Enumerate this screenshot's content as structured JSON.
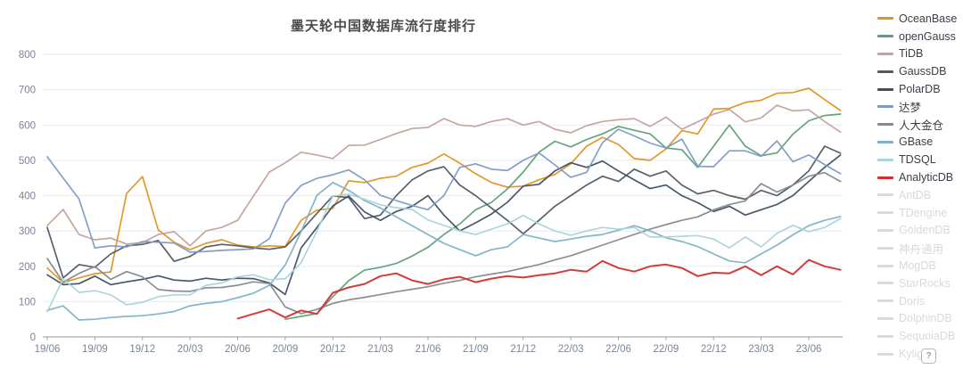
{
  "title": "墨天轮中国数据库流行度排行",
  "help_icon": {
    "glyph": "?"
  },
  "colors": {
    "grid": "#e4ebf2",
    "axis_line": "#a6abb2",
    "tick_text": "#7c8493",
    "disabled_legend": "#d8dadd"
  },
  "chart_data": {
    "type": "line",
    "title": "墨天轮中国数据库流行度排行",
    "xlabel": "",
    "ylabel": "",
    "ylim": [
      0,
      800
    ],
    "y_ticks": [
      0,
      100,
      200,
      300,
      400,
      500,
      600,
      700,
      800
    ],
    "grid": "horizontal",
    "legend_position": "right",
    "x_tick_labels": [
      "19/06",
      "19/09",
      "19/12",
      "20/03",
      "20/06",
      "20/09",
      "20/12",
      "21/03",
      "21/06",
      "21/09",
      "21/12",
      "22/03",
      "22/06",
      "22/09",
      "22/12",
      "23/03",
      "23/06"
    ],
    "x_tick_indices": [
      0,
      3,
      6,
      9,
      12,
      15,
      18,
      21,
      24,
      27,
      30,
      33,
      36,
      39,
      42,
      45,
      48
    ],
    "x_months": [
      "19/06",
      "19/07",
      "19/08",
      "19/09",
      "19/10",
      "19/11",
      "19/12",
      "20/01",
      "20/02",
      "20/03",
      "20/04",
      "20/05",
      "20/06",
      "20/07",
      "20/08",
      "20/09",
      "20/10",
      "20/11",
      "20/12",
      "21/01",
      "21/02",
      "21/03",
      "21/04",
      "21/05",
      "21/06",
      "21/07",
      "21/08",
      "21/09",
      "21/10",
      "21/11",
      "21/12",
      "22/01",
      "22/02",
      "22/03",
      "22/04",
      "22/05",
      "22/06",
      "22/07",
      "22/08",
      "22/09",
      "22/10",
      "22/11",
      "22/12",
      "23/01",
      "23/02",
      "23/03",
      "23/04",
      "23/05",
      "23/06",
      "23/07",
      "23/08"
    ],
    "series": [
      {
        "name": "OceanBase",
        "color": "#e09420",
        "width": 1.7,
        "values": [
          195,
          154,
          167,
          179,
          184,
          406,
          454,
          303,
          268,
          247,
          265,
          275,
          260,
          255,
          258,
          256,
          330,
          359,
          364,
          442,
          437,
          449,
          455,
          480,
          492,
          518,
          492,
          462,
          437,
          424,
          427,
          445,
          460,
          490,
          540,
          565,
          545,
          505,
          500,
          532,
          584,
          575,
          645,
          647,
          664,
          670,
          690,
          692,
          704,
          672,
          641
        ]
      },
      {
        "name": "openGauss",
        "color": "#5e9e77",
        "width": 1.7,
        "values": [
          null,
          null,
          null,
          null,
          null,
          null,
          null,
          null,
          null,
          null,
          null,
          null,
          null,
          null,
          null,
          50,
          58,
          66,
          114,
          159,
          189,
          197,
          208,
          229,
          254,
          290,
          320,
          360,
          381,
          419,
          467,
          523,
          554,
          538,
          559,
          575,
          596,
          585,
          575,
          535,
          530,
          480,
          540,
          600,
          540,
          513,
          521,
          574,
          612,
          627,
          631
        ]
      },
      {
        "name": "TiDB",
        "color": "#c4a19a",
        "width": 1.7,
        "values": [
          315,
          361,
          290,
          275,
          280,
          263,
          267,
          290,
          298,
          258,
          300,
          310,
          330,
          399,
          467,
          493,
          523,
          515,
          505,
          542,
          543,
          559,
          576,
          590,
          593,
          618,
          600,
          596,
          610,
          618,
          600,
          610,
          588,
          578,
          598,
          610,
          615,
          618,
          596,
          622,
          588,
          609,
          631,
          644,
          609,
          620,
          656,
          640,
          643,
          610,
          580
        ]
      },
      {
        "name": "GaussDB",
        "color": "#4f5a64",
        "width": 1.7,
        "values": [
          310,
          167,
          205,
          197,
          235,
          258,
          262,
          273,
          214,
          228,
          255,
          262,
          258,
          252,
          248,
          255,
          300,
          350,
          399,
          395,
          335,
          345,
          400,
          445,
          470,
          482,
          430,
          400,
          365,
          330,
          292,
          330,
          370,
          400,
          430,
          455,
          440,
          475,
          455,
          470,
          430,
          405,
          415,
          400,
          390,
          415,
          400,
          430,
          470,
          540,
          520
        ]
      },
      {
        "name": "PolarDB",
        "color": "#3e4f63",
        "width": 1.7,
        "values": [
          176,
          148,
          151,
          172,
          148,
          156,
          163,
          173,
          161,
          158,
          166,
          161,
          166,
          165,
          153,
          120,
          252,
          310,
          371,
          399,
          354,
          330,
          355,
          370,
          400,
          345,
          300,
          323,
          348,
          381,
          427,
          432,
          470,
          493,
          480,
          498,
          470,
          445,
          420,
          430,
          400,
          380,
          355,
          370,
          345,
          360,
          375,
          400,
          440,
          480,
          515
        ]
      },
      {
        "name": "达梦",
        "color": "#7d9ac4",
        "width": 1.7,
        "values": [
          510,
          450,
          391,
          252,
          258,
          255,
          270,
          268,
          266,
          240,
          242,
          245,
          247,
          249,
          278,
          379,
          429,
          449,
          459,
          473,
          445,
          401,
          386,
          372,
          360,
          400,
          480,
          490,
          475,
          471,
          500,
          521,
          487,
          452,
          466,
          550,
          588,
          569,
          549,
          535,
          560,
          483,
          482,
          527,
          527,
          511,
          555,
          496,
          515,
          488,
          462
        ]
      },
      {
        "name": "人大金仓",
        "color": "#85888c",
        "width": 1.7,
        "values": [
          222,
          155,
          180,
          199,
          163,
          185,
          170,
          134,
          130,
          129,
          139,
          140,
          146,
          156,
          151,
          85,
          66,
          78,
          95,
          105,
          112,
          120,
          128,
          135,
          142,
          152,
          160,
          170,
          178,
          185,
          195,
          205,
          218,
          230,
          245,
          260,
          275,
          290,
          305,
          318,
          330,
          340,
          360,
          375,
          385,
          434,
          410,
          430,
          455,
          465,
          440
        ]
      },
      {
        "name": "GBase",
        "color": "#7eb1c6",
        "width": 1.7,
        "values": [
          75,
          88,
          48,
          50,
          55,
          58,
          60,
          65,
          72,
          88,
          95,
          100,
          111,
          124,
          146,
          204,
          298,
          401,
          437,
          415,
          386,
          365,
          340,
          315,
          290,
          265,
          247,
          230,
          247,
          255,
          290,
          280,
          270,
          277,
          285,
          290,
          302,
          315,
          300,
          281,
          270,
          256,
          235,
          215,
          210,
          235,
          260,
          289,
          315,
          330,
          341
        ]
      },
      {
        "name": "TDSQL",
        "color": "#a9d4da",
        "width": 1.7,
        "values": [
          71,
          165,
          126,
          131,
          119,
          91,
          98,
          114,
          119,
          119,
          146,
          153,
          170,
          176,
          162,
          165,
          210,
          300,
          399,
          404,
          390,
          374,
          366,
          361,
          331,
          316,
          300,
          290,
          305,
          320,
          344,
          320,
          300,
          288,
          300,
          310,
          305,
          310,
          283,
          283,
          285,
          287,
          277,
          252,
          283,
          255,
          293,
          316,
          298,
          310,
          335
        ]
      },
      {
        "name": "AnalyticDB",
        "color": "#d23030",
        "width": 2,
        "values": [
          null,
          null,
          null,
          null,
          null,
          null,
          null,
          null,
          null,
          null,
          null,
          null,
          52,
          65,
          78,
          55,
          75,
          65,
          125,
          140,
          150,
          172,
          180,
          160,
          150,
          163,
          170,
          155,
          165,
          172,
          168,
          175,
          180,
          190,
          185,
          215,
          195,
          185,
          200,
          205,
          195,
          172,
          182,
          180,
          200,
          175,
          200,
          177,
          218,
          200,
          190
        ]
      }
    ],
    "disabled_series": [
      "AntDB",
      "TDengine",
      "GoldenDB",
      "神舟通用",
      "MogDB",
      "StarRocks",
      "Doris",
      "DolphinDB",
      "SequoiaDB",
      "Kylige"
    ]
  }
}
